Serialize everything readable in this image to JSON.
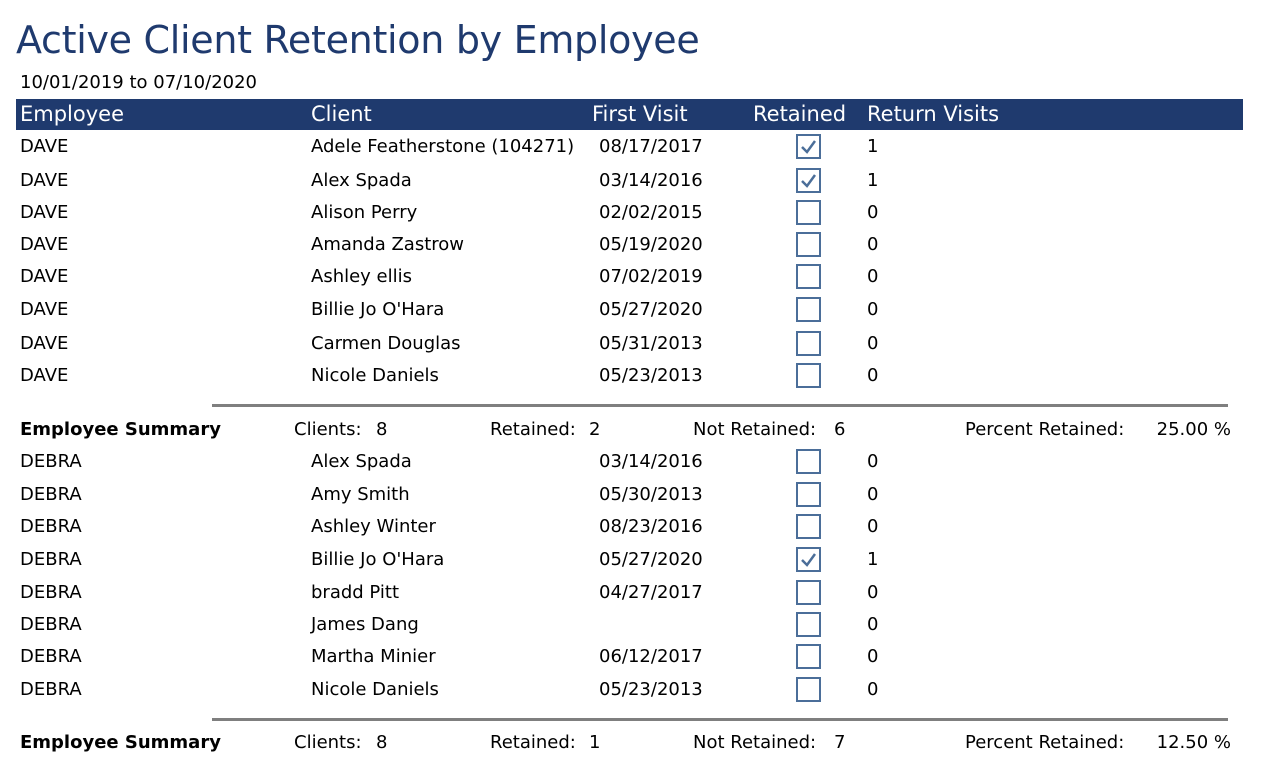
{
  "report": {
    "title": "Active Client Retention by Employee",
    "date_range": "10/01/2019 to 07/10/2020"
  },
  "columns": {
    "employee": "Employee",
    "client": "Client",
    "first_visit": "First Visit",
    "retained": "Retained",
    "return_visits": "Return Visits"
  },
  "colors": {
    "header_bg": "#1f3a6e",
    "checkbox_border": "#4b6e99"
  },
  "summary_labels": {
    "title": "Employee Summary",
    "clients": "Clients:",
    "retained": "Retained:",
    "not_retained": "Not Retained:",
    "percent_retained": "Percent Retained:"
  },
  "groups": [
    {
      "rows": [
        {
          "employee": "DAVE",
          "client": "Adele Featherstone (104271)",
          "first_visit": "08/17/2017",
          "retained": true,
          "return_visits": "1"
        },
        {
          "employee": "DAVE",
          "client": "Alex Spada",
          "first_visit": "03/14/2016",
          "retained": true,
          "return_visits": "1"
        },
        {
          "employee": "DAVE",
          "client": "Alison Perry",
          "first_visit": "02/02/2015",
          "retained": false,
          "return_visits": "0"
        },
        {
          "employee": "DAVE",
          "client": "Amanda Zastrow",
          "first_visit": "05/19/2020",
          "retained": false,
          "return_visits": "0"
        },
        {
          "employee": "DAVE",
          "client": "Ashley ellis",
          "first_visit": "07/02/2019",
          "retained": false,
          "return_visits": "0"
        },
        {
          "employee": "DAVE",
          "client": "Billie Jo O'Hara",
          "first_visit": "05/27/2020",
          "retained": false,
          "return_visits": "0"
        },
        {
          "employee": "DAVE",
          "client": "Carmen Douglas",
          "first_visit": "05/31/2013",
          "retained": false,
          "return_visits": "0"
        },
        {
          "employee": "DAVE",
          "client": "Nicole Daniels",
          "first_visit": "05/23/2013",
          "retained": false,
          "return_visits": "0"
        }
      ],
      "summary": {
        "clients": "8",
        "retained": "2",
        "not_retained": "6",
        "percent_retained": "25.00 %"
      }
    },
    {
      "rows": [
        {
          "employee": "DEBRA",
          "client": "Alex Spada",
          "first_visit": "03/14/2016",
          "retained": false,
          "return_visits": "0"
        },
        {
          "employee": "DEBRA",
          "client": "Amy Smith",
          "first_visit": "05/30/2013",
          "retained": false,
          "return_visits": "0"
        },
        {
          "employee": "DEBRA",
          "client": "Ashley Winter",
          "first_visit": "08/23/2016",
          "retained": false,
          "return_visits": "0"
        },
        {
          "employee": "DEBRA",
          "client": "Billie Jo O'Hara",
          "first_visit": "05/27/2020",
          "retained": true,
          "return_visits": "1"
        },
        {
          "employee": "DEBRA",
          "client": "bradd Pitt",
          "first_visit": "04/27/2017",
          "retained": false,
          "return_visits": "0"
        },
        {
          "employee": "DEBRA",
          "client": "James Dang",
          "first_visit": "",
          "retained": false,
          "return_visits": "0"
        },
        {
          "employee": "DEBRA",
          "client": "Martha Minier",
          "first_visit": "06/12/2017",
          "retained": false,
          "return_visits": "0"
        },
        {
          "employee": "DEBRA",
          "client": "Nicole Daniels",
          "first_visit": "05/23/2013",
          "retained": false,
          "return_visits": "0"
        }
      ],
      "summary": {
        "clients": "8",
        "retained": "1",
        "not_retained": "7",
        "percent_retained": "12.50 %"
      }
    }
  ]
}
